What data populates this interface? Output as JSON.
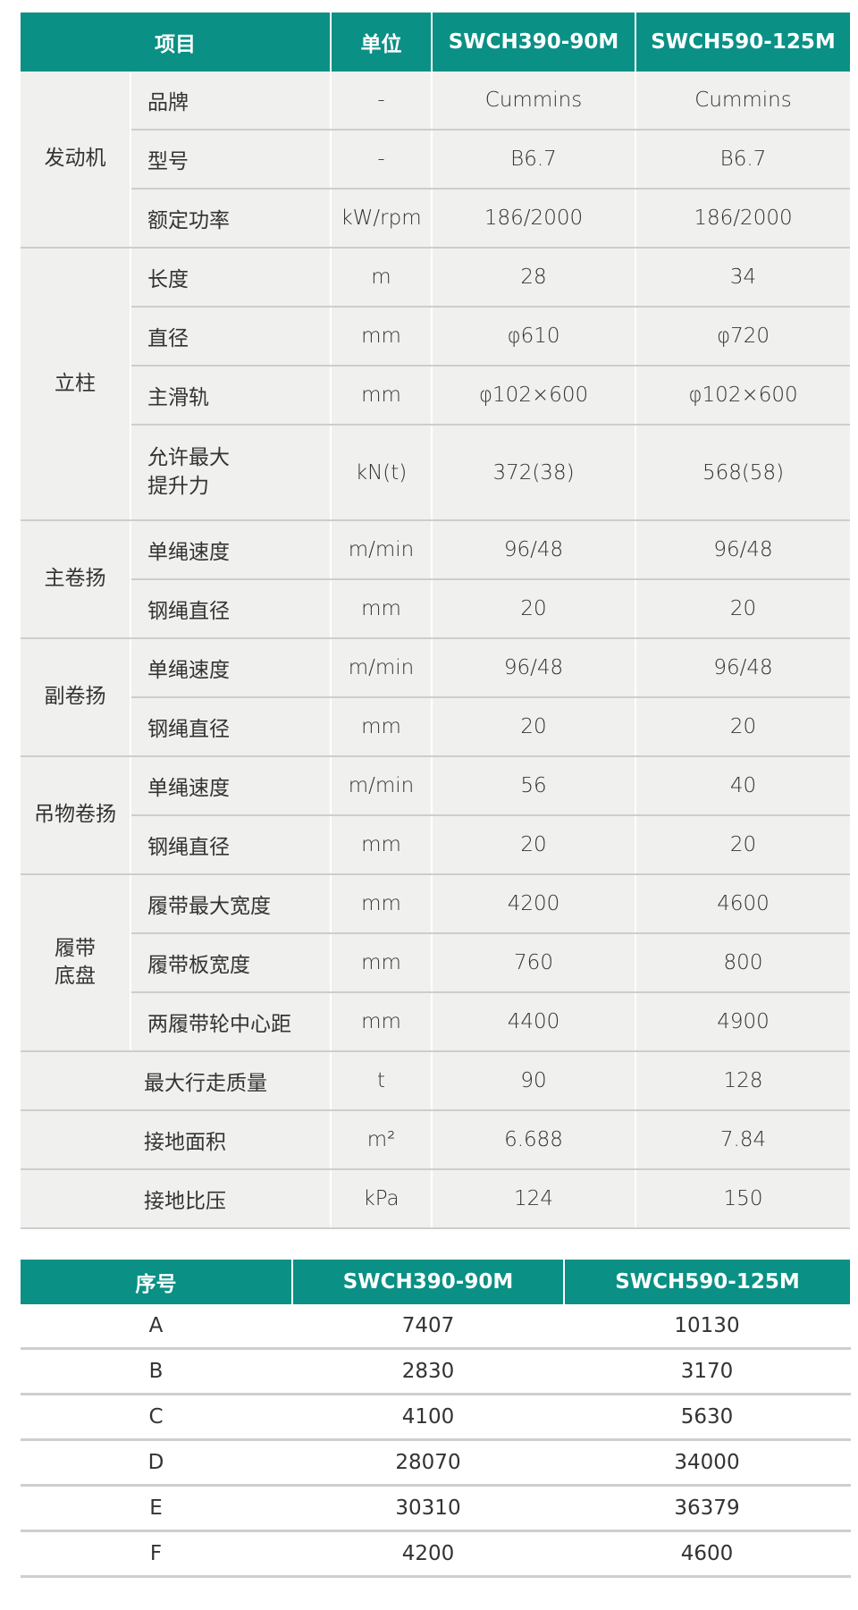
{
  "colors": {
    "header_bg": "#0a9085",
    "row_bg": "#f0f0ee",
    "divider": "#cdcdcd"
  },
  "spec_table": {
    "headers": [
      "项目",
      "单位",
      "SWCH390-90M",
      "SWCH590-125M"
    ],
    "groups": [
      {
        "label": "发动机",
        "rows": [
          {
            "item": "品牌",
            "unit": "-",
            "v1": "Cummins",
            "v2": "Cummins"
          },
          {
            "item": "型号",
            "unit": "-",
            "v1": "B6.7",
            "v2": "B6.7"
          },
          {
            "item": "额定功率",
            "unit": "kW/rpm",
            "v1": "186/2000",
            "v2": "186/2000"
          }
        ]
      },
      {
        "label": "立柱",
        "rows": [
          {
            "item": "长度",
            "unit": "m",
            "v1": "28",
            "v2": "34"
          },
          {
            "item": "直径",
            "unit": "mm",
            "v1": "φ610",
            "v2": "φ720"
          },
          {
            "item": "主滑轨",
            "unit": "mm",
            "v1": "φ102×600",
            "v2": "φ102×600"
          },
          {
            "item": "允许最大\n提升力",
            "unit": "kN(t)",
            "v1": "372(38)",
            "v2": "568(58)"
          }
        ]
      },
      {
        "label": "主卷扬",
        "rows": [
          {
            "item": "单绳速度",
            "unit": "m/min",
            "v1": "96/48",
            "v2": "96/48"
          },
          {
            "item": "钢绳直径",
            "unit": "mm",
            "v1": "20",
            "v2": "20"
          }
        ]
      },
      {
        "label": "副卷扬",
        "rows": [
          {
            "item": "单绳速度",
            "unit": "m/min",
            "v1": "96/48",
            "v2": "96/48"
          },
          {
            "item": "钢绳直径",
            "unit": "mm",
            "v1": "20",
            "v2": "20"
          }
        ]
      },
      {
        "label": "吊物卷扬",
        "rows": [
          {
            "item": "单绳速度",
            "unit": "m/min",
            "v1": "56",
            "v2": "40"
          },
          {
            "item": "钢绳直径",
            "unit": "mm",
            "v1": "20",
            "v2": "20"
          }
        ]
      },
      {
        "label": "履带\n底盘",
        "rows": [
          {
            "item": "履带最大宽度",
            "unit": "mm",
            "v1": "4200",
            "v2": "4600"
          },
          {
            "item": "履带板宽度",
            "unit": "mm",
            "v1": "760",
            "v2": "800"
          },
          {
            "item": "两履带轮中心距",
            "unit": "mm",
            "v1": "4400",
            "v2": "4900"
          }
        ]
      }
    ],
    "standalone": [
      {
        "item": "最大行走质量",
        "unit": "t",
        "v1": "90",
        "v2": "128"
      },
      {
        "item": "接地面积",
        "unit": "m²",
        "v1": "6.688",
        "v2": "7.84"
      },
      {
        "item": "接地比压",
        "unit": "kPa",
        "v1": "124",
        "v2": "150"
      }
    ]
  },
  "dims_table": {
    "headers": [
      "序号",
      "SWCH390-90M",
      "SWCH590-125M"
    ],
    "rows": [
      {
        "id": "A",
        "v1": "7407",
        "v2": "10130"
      },
      {
        "id": "B",
        "v1": "2830",
        "v2": "3170"
      },
      {
        "id": "C",
        "v1": "4100",
        "v2": "5630"
      },
      {
        "id": "D",
        "v1": "28070",
        "v2": "34000"
      },
      {
        "id": "E",
        "v1": "30310",
        "v2": "36379"
      },
      {
        "id": "F",
        "v1": "4200",
        "v2": "4600"
      }
    ]
  }
}
